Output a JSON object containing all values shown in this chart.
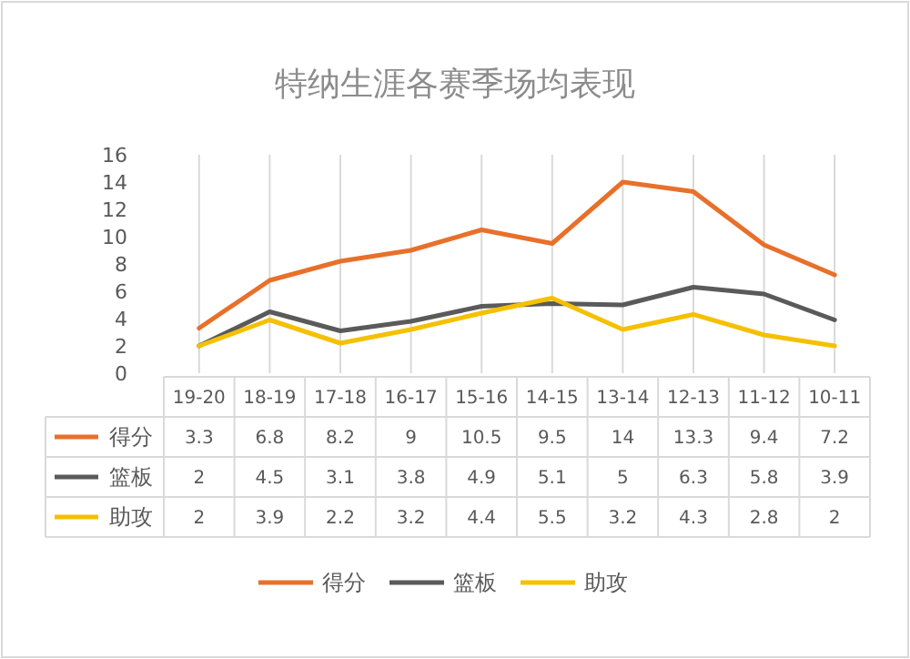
{
  "chart_data": {
    "type": "line",
    "title": "特纳生涯各赛季场均表现",
    "categories": [
      "19-20",
      "18-19",
      "17-18",
      "16-17",
      "15-16",
      "14-15",
      "13-14",
      "12-13",
      "11-12",
      "10-11"
    ],
    "series": [
      {
        "name": "得分",
        "color": "#e8702a",
        "values": [
          3.3,
          6.8,
          8.2,
          9,
          10.5,
          9.5,
          14,
          13.3,
          9.4,
          7.2
        ]
      },
      {
        "name": "篮板",
        "color": "#5a5a5a",
        "values": [
          2,
          4.5,
          3.1,
          3.8,
          4.9,
          5.1,
          5,
          6.3,
          5.8,
          3.9
        ]
      },
      {
        "name": "助攻",
        "color": "#f5c000",
        "values": [
          2,
          3.9,
          2.2,
          3.2,
          4.4,
          5.5,
          3.2,
          4.3,
          2.8,
          2
        ]
      }
    ],
    "ylim": [
      0,
      16
    ],
    "yticks": [
      0,
      2,
      4,
      6,
      8,
      10,
      12,
      14,
      16
    ],
    "grid": "x",
    "legend": "bottom",
    "data_labels": true,
    "marker": "none",
    "line_style": "solid"
  }
}
